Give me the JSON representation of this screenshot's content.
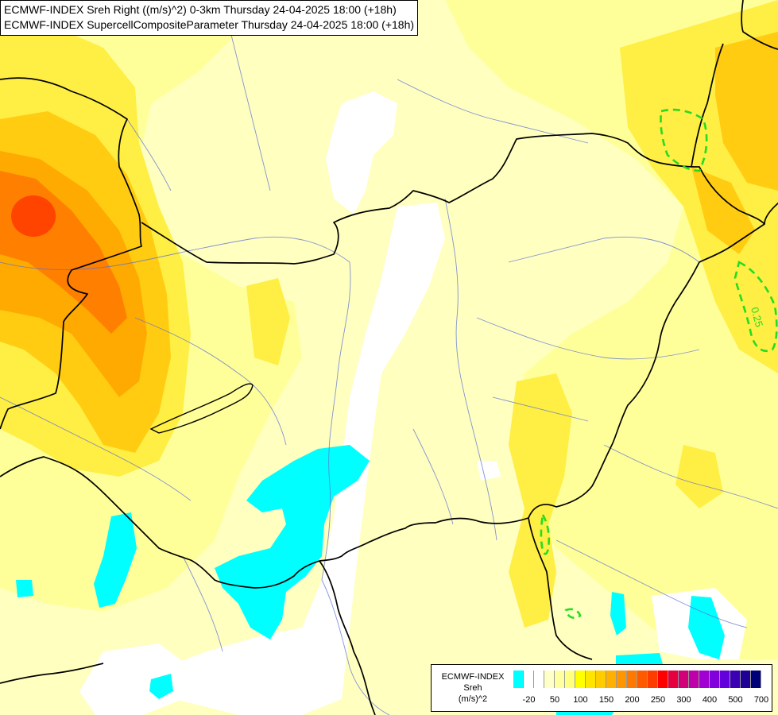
{
  "header": {
    "line1": "ECMWF-INDEX Sreh Right ((m/s)^2) 0-3km Thursday 24-04-2025 18:00 (+18h)",
    "line2": "ECMWF-INDEX SupercellCompositeParameter Thursday 24-04-2025 18:00 (+18h)"
  },
  "contour": {
    "label": "0.25",
    "color": "#22dd22"
  },
  "colors": {
    "cyan": "#00ffff",
    "white": "#ffffff",
    "pale": "#ffffc0",
    "light": "#ffff99",
    "yellow": "#ffee44",
    "gold": "#ffcc11",
    "orange": "#ffaa00",
    "dark_orange": "#ff7f00",
    "red_orange": "#ff4400"
  },
  "legend": {
    "model": "ECMWF-INDEX",
    "variable": "Sreh",
    "unit": "(m/s)^2",
    "swatches": [
      "#00ffff",
      "#ffffff",
      "#ffffff",
      "#ffffc8",
      "#ffffa0",
      "#ffff80",
      "#ffff00",
      "#ffe600",
      "#ffcc00",
      "#ffb000",
      "#ff9600",
      "#ff7800",
      "#ff5a00",
      "#ff3c00",
      "#ff0000",
      "#e60040",
      "#d20078",
      "#be00aa",
      "#a000d2",
      "#8200dc",
      "#6400dc",
      "#3c00b4",
      "#1e0096",
      "#000078"
    ],
    "labels": [
      "-20",
      "50",
      "100",
      "150",
      "200",
      "250",
      "300",
      "400",
      "500",
      "700"
    ]
  }
}
